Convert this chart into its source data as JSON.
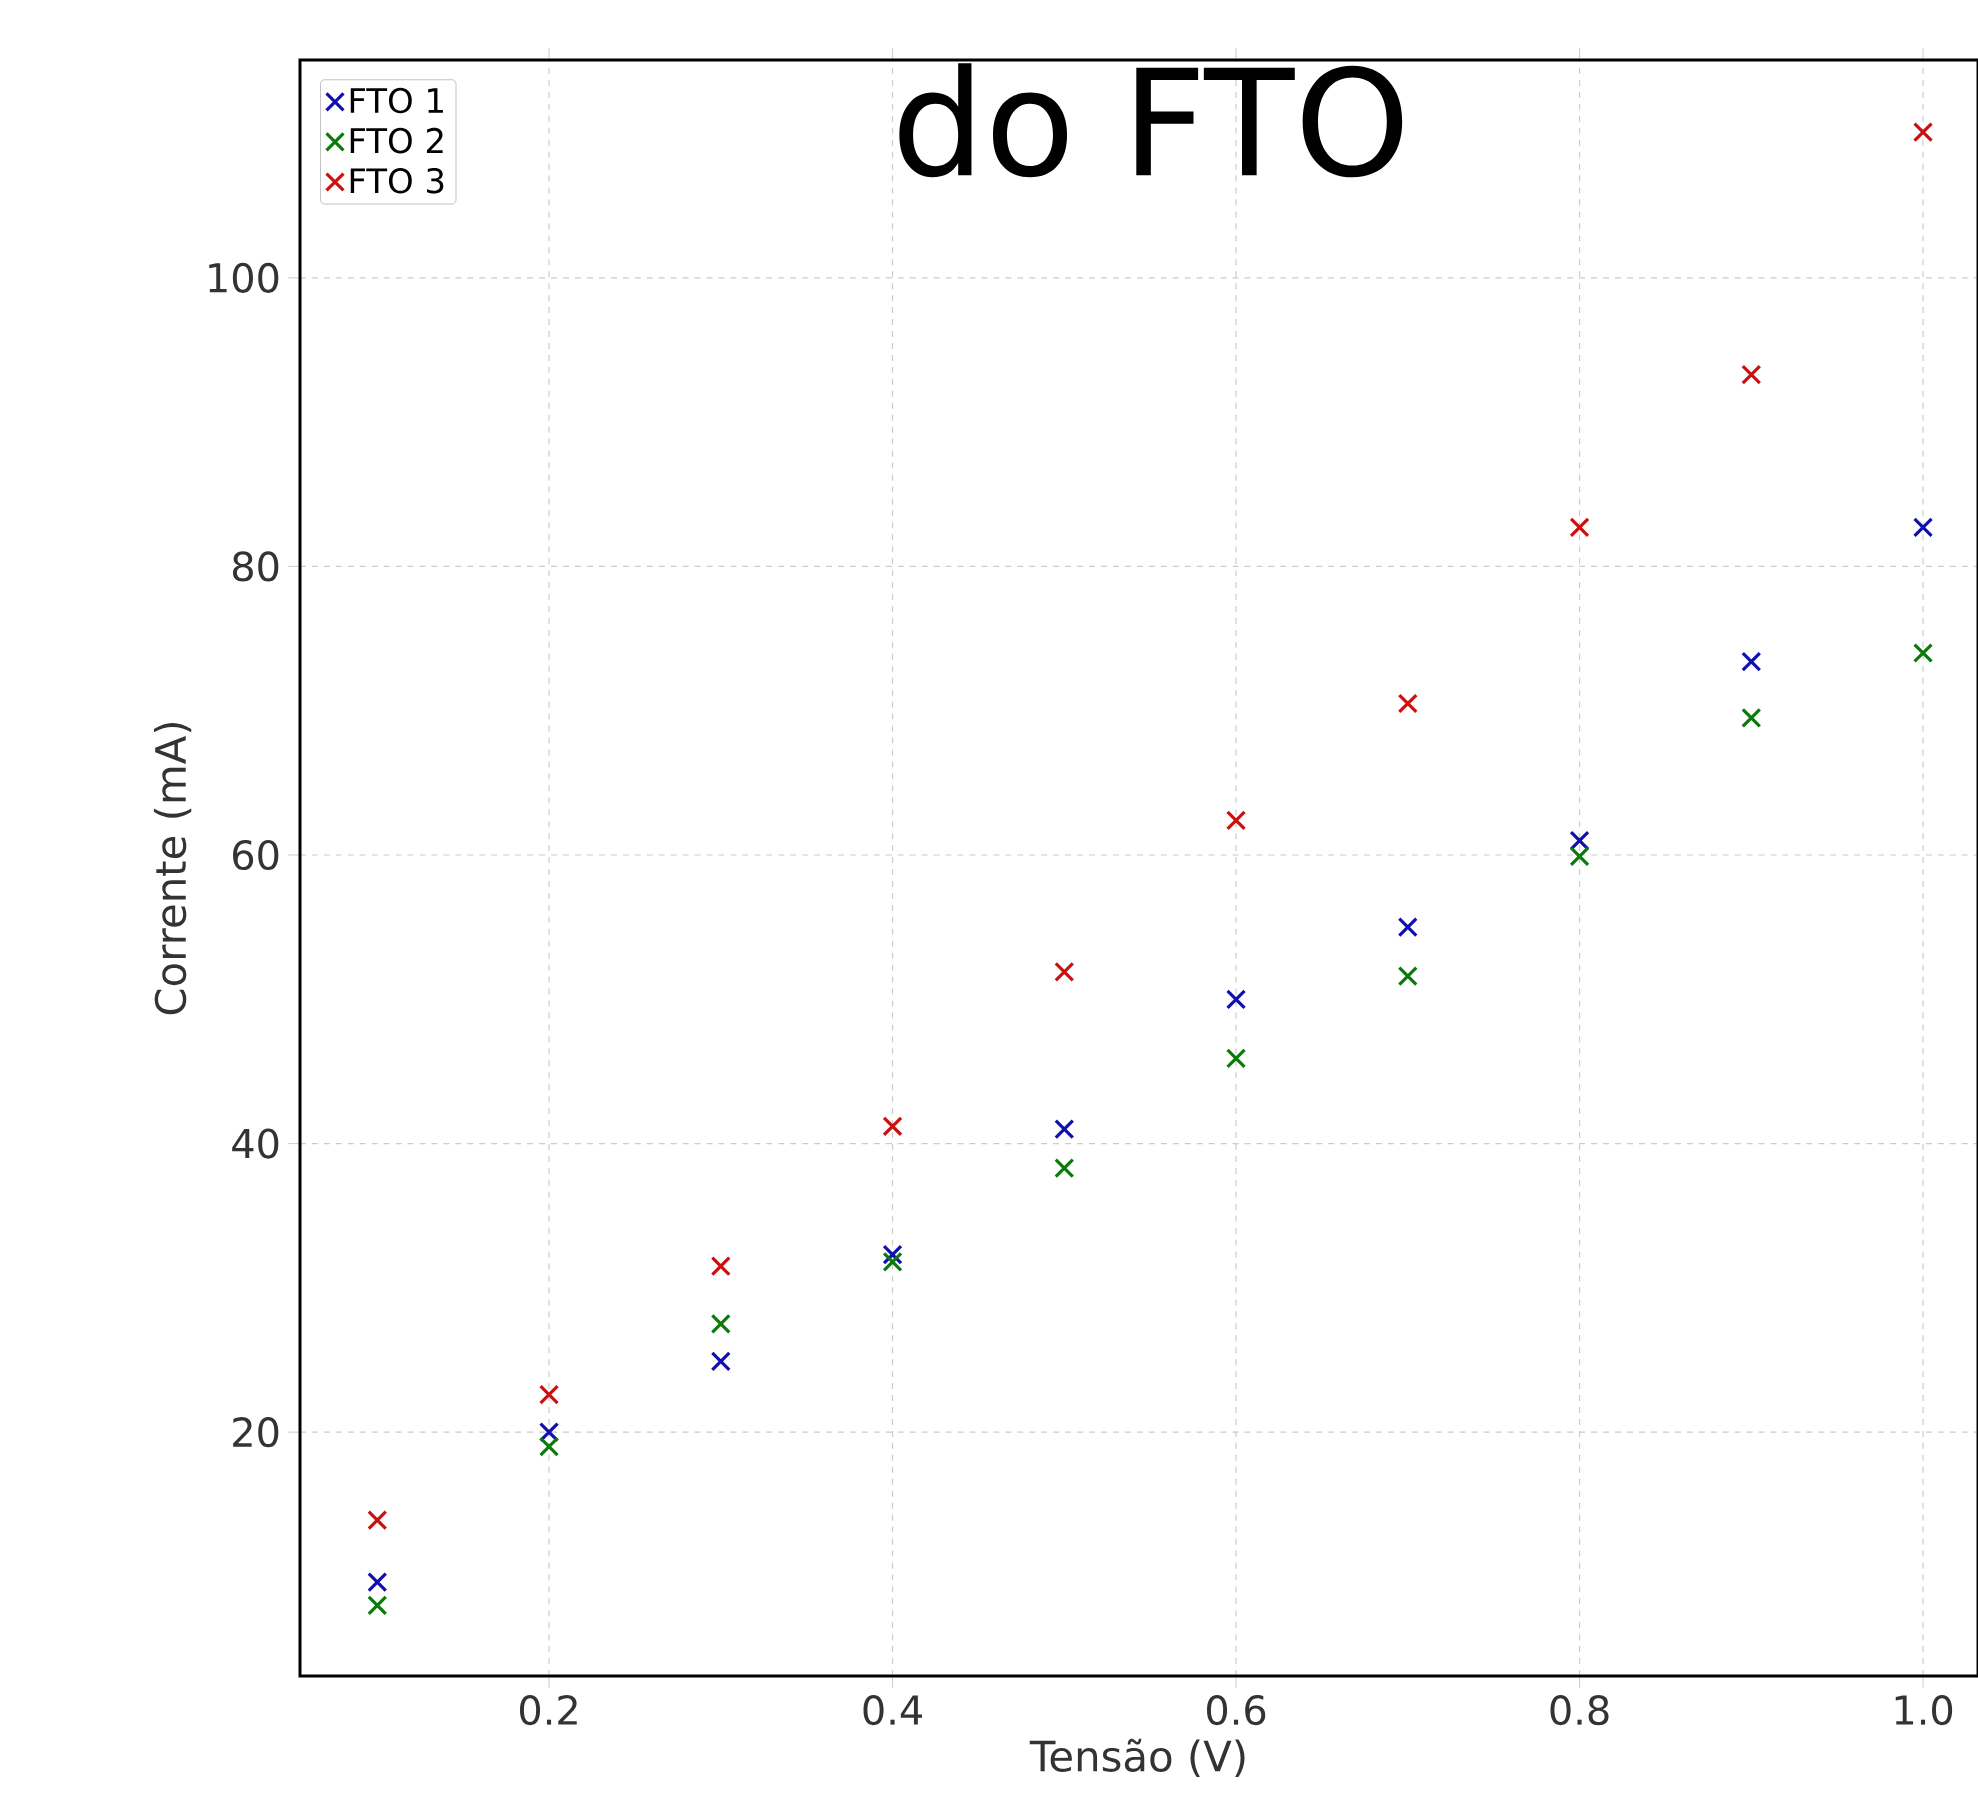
{
  "chart_data": {
    "type": "scatter",
    "title": "do FTO",
    "xlabel": "Tensão (V)",
    "ylabel": "Corrente (mA)",
    "x": [
      0.1,
      0.2,
      0.3,
      0.4,
      0.5,
      0.6,
      0.7,
      0.8,
      0.9,
      1.0
    ],
    "series": [
      {
        "name": "FTO 1",
        "color": "#1010b0",
        "values": [
          9.6,
          20,
          24.9,
          32.3,
          41,
          50,
          55,
          61,
          73.4,
          82.7
        ]
      },
      {
        "name": "FTO 2",
        "color": "#0a7a0a",
        "values": [
          8,
          19,
          27.5,
          31.8,
          38.3,
          45.9,
          51.6,
          59.9,
          69.5,
          74
        ]
      },
      {
        "name": "FTO 3",
        "color": "#cc1010",
        "values": [
          13.9,
          22.6,
          31.5,
          41.2,
          51.9,
          62.4,
          70.5,
          82.7,
          93.3,
          110.1
        ]
      }
    ],
    "xlim": [
      0.055,
      1.032
    ],
    "ylim": [
      3.1,
      115.1
    ],
    "xticks": [
      0.2,
      0.4,
      0.6,
      0.8,
      {
        "value": 1,
        "label": "1.0"
      }
    ],
    "yticks": [
      20,
      40,
      60,
      80,
      100
    ],
    "grid": true,
    "legend": "top left",
    "marker": "cross"
  }
}
